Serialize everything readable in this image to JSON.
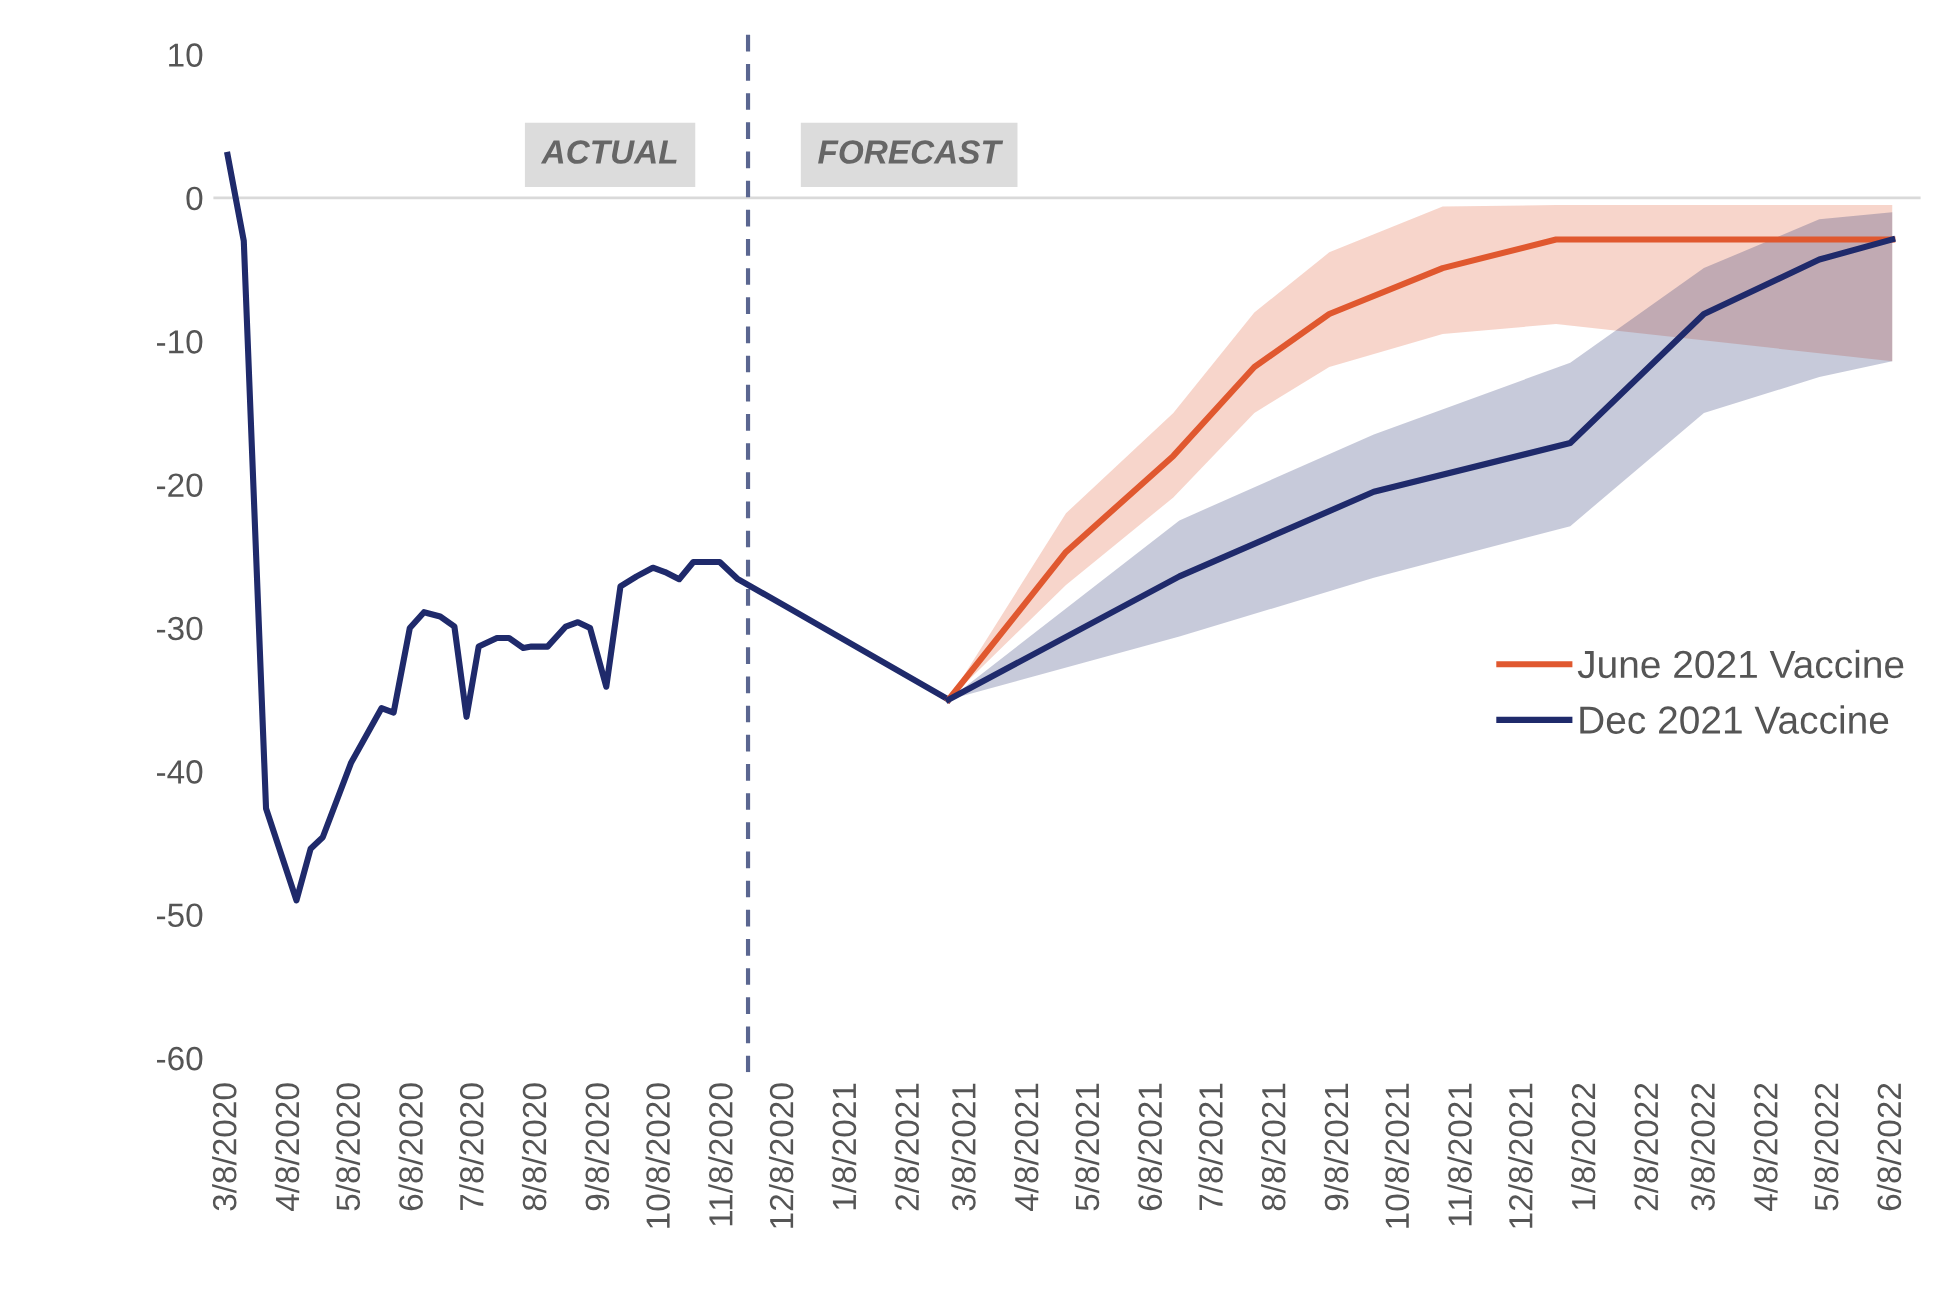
{
  "chart_data": {
    "type": "line",
    "xlim": [
      "2020-03-01",
      "2022-06-22"
    ],
    "xticks": [
      {
        "value": "2020-03-08",
        "label": "3/8/2020"
      },
      {
        "value": "2020-04-08",
        "label": "4/8/2020"
      },
      {
        "value": "2020-05-08",
        "label": "5/8/2020"
      },
      {
        "value": "2020-06-08",
        "label": "6/8/2020"
      },
      {
        "value": "2020-07-08",
        "label": "7/8/2020"
      },
      {
        "value": "2020-08-08",
        "label": "8/8/2020"
      },
      {
        "value": "2020-09-08",
        "label": "9/8/2020"
      },
      {
        "value": "2020-10-08",
        "label": "10/8/2020"
      },
      {
        "value": "2020-11-08",
        "label": "11/8/2020"
      },
      {
        "value": "2020-12-08",
        "label": "12/8/2020"
      },
      {
        "value": "2021-01-08",
        "label": "1/8/2021"
      },
      {
        "value": "2021-02-08",
        "label": "2/8/2021"
      },
      {
        "value": "2021-03-08",
        "label": "3/8/2021"
      },
      {
        "value": "2021-04-08",
        "label": "4/8/2021"
      },
      {
        "value": "2021-05-08",
        "label": "5/8/2021"
      },
      {
        "value": "2021-06-08",
        "label": "6/8/2021"
      },
      {
        "value": "2021-07-08",
        "label": "7/8/2021"
      },
      {
        "value": "2021-08-08",
        "label": "8/8/2021"
      },
      {
        "value": "2021-09-08",
        "label": "9/8/2021"
      },
      {
        "value": "2021-10-08",
        "label": "10/8/2021"
      },
      {
        "value": "2021-11-08",
        "label": "11/8/2021"
      },
      {
        "value": "2021-12-08",
        "label": "12/8/2021"
      },
      {
        "value": "2022-01-08",
        "label": "1/8/2022"
      },
      {
        "value": "2022-02-08",
        "label": "2/8/2022"
      },
      {
        "value": "2022-03-08",
        "label": "3/8/2022"
      },
      {
        "value": "2022-04-08",
        "label": "4/8/2022"
      },
      {
        "value": "2022-05-08",
        "label": "5/8/2022"
      },
      {
        "value": "2022-06-08",
        "label": "6/8/2022"
      }
    ],
    "ylim": [
      -61,
      12
    ],
    "yticks": [
      10,
      0,
      -10,
      -20,
      -30,
      -40,
      -50,
      -60
    ],
    "grid": false,
    "legend": "right",
    "line_style": "solid",
    "marker": "none",
    "ref_lines": [
      {
        "axis": "x",
        "value": "2020-11-20",
        "color": "#5a6690",
        "line_style": "dashed"
      },
      {
        "axis": "y",
        "value": 0,
        "color": "#d9d9d9",
        "line_style": "solid"
      }
    ],
    "annotations": [
      "ACTUAL",
      "FORECAST"
    ],
    "series": [
      {
        "color": "#1f2a6b",
        "x": [
          "2020-03-08",
          "2020-03-16",
          "2020-03-27",
          "2020-04-11",
          "2020-04-18",
          "2020-04-24",
          "2020-05-08",
          "2020-05-23",
          "2020-05-29",
          "2020-06-06",
          "2020-06-13",
          "2020-06-21",
          "2020-06-28",
          "2020-07-04",
          "2020-07-10",
          "2020-07-19",
          "2020-07-25",
          "2020-08-01",
          "2020-08-05",
          "2020-08-13",
          "2020-08-22",
          "2020-08-28",
          "2020-09-03",
          "2020-09-11",
          "2020-09-18",
          "2020-09-26",
          "2020-10-04",
          "2020-10-10",
          "2020-10-17",
          "2020-10-24",
          "2020-11-06",
          "2020-11-15",
          "2020-12-10",
          "2021-02-27"
        ],
        "values": [
          3,
          -3,
          -42.6,
          -49,
          -45.4,
          -44.6,
          -39.4,
          -35.6,
          -35.9,
          -30,
          -28.9,
          -29.2,
          -29.9,
          -36.2,
          -31.3,
          -30.7,
          -30.7,
          -31.4,
          -31.3,
          -31.3,
          -29.9,
          -29.6,
          -30,
          -34.1,
          -27.1,
          -26.4,
          -25.8,
          -26.1,
          -26.6,
          -25.4,
          -25.4,
          -26.6,
          -28.6,
          -35
        ]
      },
      {
        "name": "June 2021 Vaccine",
        "color": "#e0582f",
        "x": [
          "2021-02-27",
          "2021-04-26",
          "2021-06-18",
          "2021-07-28",
          "2021-09-03",
          "2021-10-29",
          "2021-12-24",
          "2022-06-08"
        ],
        "values": [
          -35,
          -24.7,
          -18,
          -11.8,
          -8.1,
          -4.9,
          -2.9,
          -2.9
        ],
        "lower": [
          -35,
          -27,
          -20.9,
          -15,
          -11.8,
          -9.5,
          -8.8,
          -11.4
        ],
        "upper": [
          -35,
          -22,
          -15,
          -8,
          -3.8,
          -0.6,
          -0.5,
          -0.5
        ]
      },
      {
        "name": "Dec 2021 Vaccine",
        "color": "#1f2a6b",
        "x": [
          "2021-02-27",
          "2021-06-21",
          "2021-09-25",
          "2021-12-31",
          "2022-03-07",
          "2022-05-03",
          "2022-06-08"
        ],
        "values": [
          -35,
          -26.4,
          -20.5,
          -17.1,
          -8.1,
          -4.3,
          -2.9
        ],
        "lower": [
          -35,
          -30.6,
          -26.5,
          -22.9,
          -15,
          -12.5,
          -11.4
        ],
        "upper": [
          -35,
          -22.5,
          -16.5,
          -11.5,
          -4.9,
          -1.5,
          -1
        ]
      }
    ]
  }
}
